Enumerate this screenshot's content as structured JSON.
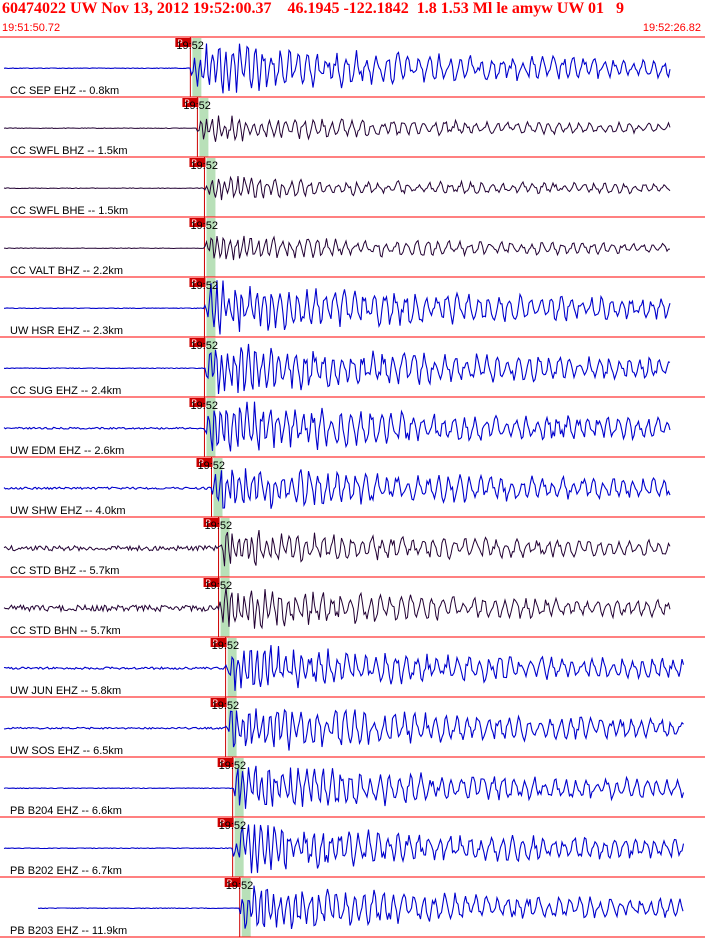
{
  "header": {
    "title": "60474022 UW Nov 13, 2012 19:52:00.37    46.1945 -122.1842  1.8 1.53 Ml le amyw UW 01   9",
    "start_time": "19:51:50.72",
    "end_time": "19:52:26.82"
  },
  "colors": {
    "accent": "#ff0000",
    "trace_blue": "#0000cc",
    "trace_dark": "#220033",
    "pick_window": "#b8e0b8",
    "separator": "#ff0000"
  },
  "chart_data": {
    "type": "line",
    "title": "",
    "xlabel": "",
    "ylabel": "",
    "x_range": [
      "19:51:50.72",
      "19:52:26.82"
    ],
    "pick_label": "P",
    "time_label": "19:52",
    "series": [
      {
        "name": "CC SEP EHZ -- 0.8km",
        "color": "#0000cc",
        "onset": 0.27,
        "amp": 1.0,
        "pre": 0.0,
        "dark": false
      },
      {
        "name": "CC SWFL BHZ -- 1.5km",
        "color": "#220033",
        "onset": 0.28,
        "amp": 0.5,
        "pre": 0.0,
        "dark": true
      },
      {
        "name": "CC SWFL BHE -- 1.5km",
        "color": "#220033",
        "onset": 0.29,
        "amp": 0.45,
        "pre": 0.0,
        "dark": true
      },
      {
        "name": "CC VALT BHZ -- 2.2km",
        "color": "#220033",
        "onset": 0.29,
        "amp": 0.5,
        "pre": 0.0,
        "dark": true
      },
      {
        "name": "UW HSR EHZ -- 2.3km",
        "color": "#0000cc",
        "onset": 0.29,
        "amp": 1.0,
        "pre": 0.0,
        "dark": false
      },
      {
        "name": "CC SUG EHZ -- 2.4km",
        "color": "#0000cc",
        "onset": 0.29,
        "amp": 1.0,
        "pre": 0.0,
        "dark": false
      },
      {
        "name": "UW EDM EHZ -- 2.6km",
        "color": "#0000cc",
        "onset": 0.29,
        "amp": 1.0,
        "pre": 0.02,
        "dark": false
      },
      {
        "name": "UW SHW EHZ -- 4.0km",
        "color": "#0000cc",
        "onset": 0.3,
        "amp": 0.9,
        "pre": 0.03,
        "dark": false
      },
      {
        "name": "CC STD BHZ -- 5.7km",
        "color": "#220033",
        "onset": 0.31,
        "amp": 0.7,
        "pre": 0.08,
        "dark": true
      },
      {
        "name": "CC STD BHN -- 5.7km",
        "color": "#220033",
        "onset": 0.31,
        "amp": 0.8,
        "pre": 0.1,
        "dark": true
      },
      {
        "name": "UW JUN EHZ -- 5.8km",
        "color": "#0000cc",
        "onset": 0.32,
        "amp": 0.9,
        "pre": 0.03,
        "dark": false
      },
      {
        "name": "UW SOS EHZ -- 6.5km",
        "color": "#0000cc",
        "onset": 0.32,
        "amp": 0.9,
        "pre": 0.02,
        "dark": false
      },
      {
        "name": "PB B204 EHZ -- 6.6km",
        "color": "#0000cc",
        "onset": 0.33,
        "amp": 0.9,
        "pre": 0.0,
        "dark": false
      },
      {
        "name": "PB B202 EHZ -- 6.7km",
        "color": "#0000cc",
        "onset": 0.33,
        "amp": 0.9,
        "pre": 0.0,
        "dark": false
      },
      {
        "name": "PB B203 EHZ -- 11.9km",
        "color": "#0000cc",
        "onset": 0.34,
        "amp": 0.9,
        "pre": 0.0,
        "dark": false
      }
    ],
    "grid": false,
    "legend": "none"
  }
}
